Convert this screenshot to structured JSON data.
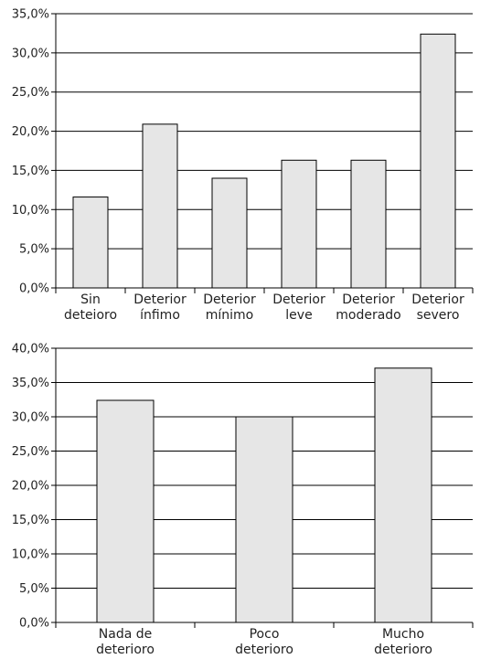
{
  "chart_data": [
    {
      "type": "bar",
      "title": "",
      "xlabel": "",
      "ylabel": "",
      "ylim": [
        0,
        35
      ],
      "yticks": [
        "0,0%",
        "5,0%",
        "10,0%",
        "15,0%",
        "20,0%",
        "25,0%",
        "30,0%",
        "35,0%"
      ],
      "grid": true,
      "categories": [
        [
          "Sin",
          "deteioro"
        ],
        [
          "Deterior",
          "ínfimo"
        ],
        [
          "Deterior",
          "mínimo"
        ],
        [
          "Deterior",
          "leve"
        ],
        [
          "Deterior",
          "moderado"
        ],
        [
          "Deterior",
          "severo"
        ]
      ],
      "values": [
        11.6,
        20.9,
        14.0,
        16.3,
        16.3,
        32.4
      ],
      "colors": {
        "bar_fill": "#e6e6e6",
        "bar_stroke": "#000000",
        "axis": "#000000",
        "grid": "#000000"
      }
    },
    {
      "type": "bar",
      "title": "",
      "xlabel": "",
      "ylabel": "",
      "ylim": [
        0,
        40
      ],
      "yticks": [
        "0,0%",
        "5,0%",
        "10,0%",
        "15,0%",
        "20,0%",
        "25,0%",
        "30,0%",
        "35,0%",
        "40,0%"
      ],
      "grid": true,
      "categories": [
        [
          "Nada de",
          "deterioro"
        ],
        [
          "Poco",
          "deterioro"
        ],
        [
          "Mucho",
          "deterioro"
        ]
      ],
      "values": [
        32.4,
        30.0,
        37.1
      ],
      "colors": {
        "bar_fill": "#e6e6e6",
        "bar_stroke": "#000000",
        "axis": "#000000",
        "grid": "#000000"
      }
    }
  ]
}
